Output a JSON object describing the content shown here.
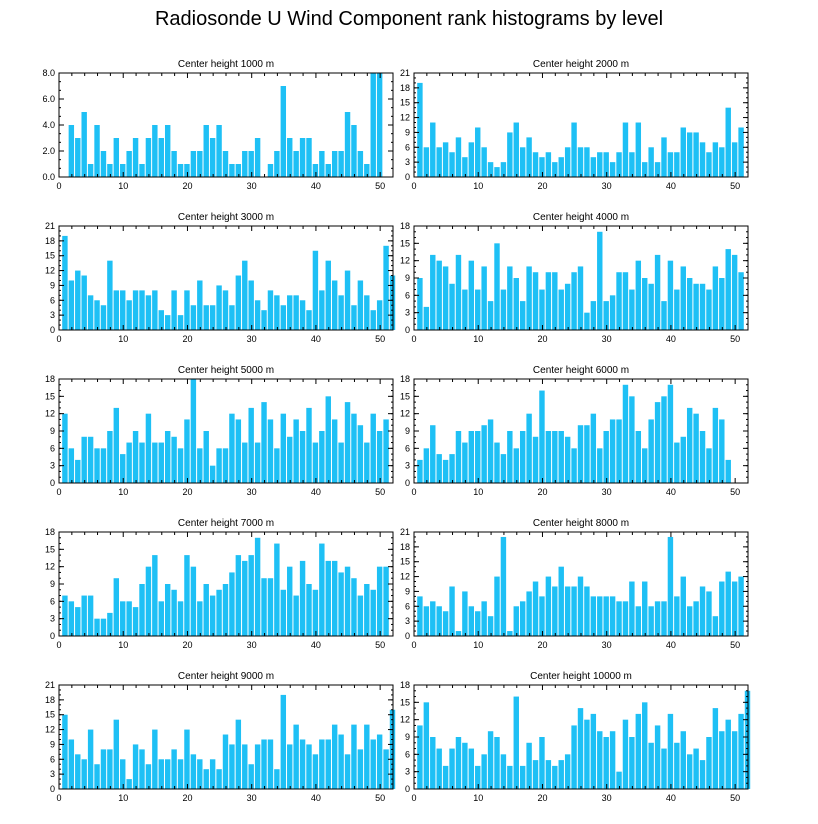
{
  "title": "Radiosonde U Wind Component rank histograms by level",
  "colors": {
    "bar": "#1ec0f5",
    "bar_stroke": "#ffffff",
    "axis": "#000000",
    "background": "#ffffff"
  },
  "chart_data": [
    {
      "type": "bar",
      "title": "Center height 1000 m",
      "ylim": [
        0,
        8
      ],
      "yticks": [
        "0.0",
        "2.0",
        "4.0",
        "6.0",
        "8.0"
      ],
      "ytick_values": [
        0,
        2,
        4,
        6,
        8
      ],
      "xticks": [
        0,
        10,
        20,
        30,
        40,
        50
      ],
      "values": [
        0,
        4,
        3,
        5,
        1,
        4,
        2,
        1,
        3,
        1,
        2,
        3,
        1,
        3,
        4,
        3,
        4,
        2,
        1,
        1,
        2,
        2,
        4,
        3,
        4,
        2,
        1,
        1,
        2,
        2,
        3,
        0,
        1,
        2,
        7,
        3,
        2,
        3,
        3,
        1,
        2,
        1,
        2,
        2,
        5,
        4,
        2,
        1,
        8,
        8
      ]
    },
    {
      "type": "bar",
      "title": "Center height 2000 m",
      "ylim": [
        0,
        21
      ],
      "yticks": [
        "0",
        "3",
        "6",
        "9",
        "12",
        "15",
        "18",
        "21"
      ],
      "ytick_values": [
        0,
        3,
        6,
        9,
        12,
        15,
        18,
        21
      ],
      "xticks": [
        0,
        10,
        20,
        30,
        40,
        50
      ],
      "values": [
        19,
        6,
        11,
        6,
        7,
        5,
        8,
        4,
        7,
        10,
        6,
        3,
        2,
        3,
        9,
        11,
        6,
        8,
        5,
        4,
        5,
        3,
        4,
        6,
        11,
        6,
        6,
        4,
        5,
        5,
        3,
        5,
        11,
        5,
        11,
        3,
        6,
        3,
        8,
        5,
        5,
        10,
        9,
        9,
        7,
        5,
        7,
        6,
        14,
        7,
        10
      ]
    },
    {
      "type": "bar",
      "title": "Center height 3000 m",
      "ylim": [
        0,
        21
      ],
      "yticks": [
        "0",
        "3",
        "6",
        "9",
        "12",
        "15",
        "18",
        "21"
      ],
      "ytick_values": [
        0,
        3,
        6,
        9,
        12,
        15,
        18,
        21
      ],
      "xticks": [
        0,
        10,
        20,
        30,
        40,
        50
      ],
      "values": [
        19,
        10,
        12,
        11,
        7,
        6,
        5,
        14,
        8,
        8,
        6,
        8,
        8,
        7,
        8,
        4,
        3,
        8,
        3,
        8,
        5,
        10,
        5,
        5,
        9,
        8,
        5,
        11,
        14,
        10,
        6,
        4,
        8,
        7,
        5,
        7,
        7,
        6,
        4,
        16,
        8,
        14,
        10,
        7,
        12,
        5,
        10,
        7,
        4,
        6,
        17,
        11
      ]
    },
    {
      "type": "bar",
      "title": "Center height 4000 m",
      "ylim": [
        0,
        18
      ],
      "yticks": [
        "0",
        "3",
        "6",
        "9",
        "12",
        "15",
        "18"
      ],
      "ytick_values": [
        0,
        3,
        6,
        9,
        12,
        15,
        18
      ],
      "xticks": [
        0,
        10,
        20,
        30,
        40,
        50
      ],
      "values": [
        9,
        4,
        13,
        12,
        11,
        8,
        13,
        7,
        12,
        7,
        11,
        5,
        15,
        7,
        11,
        9,
        5,
        11,
        10,
        7,
        10,
        10,
        7,
        8,
        10,
        11,
        3,
        5,
        17,
        5,
        6,
        10,
        10,
        7,
        12,
        9,
        8,
        13,
        5,
        12,
        7,
        11,
        9,
        8,
        8,
        7,
        11,
        9,
        14,
        13,
        10
      ]
    },
    {
      "type": "bar",
      "title": "Center height 5000 m",
      "ylim": [
        0,
        18
      ],
      "yticks": [
        "0",
        "3",
        "6",
        "9",
        "12",
        "15",
        "18"
      ],
      "ytick_values": [
        0,
        3,
        6,
        9,
        12,
        15,
        18
      ],
      "xticks": [
        0,
        10,
        20,
        30,
        40,
        50
      ],
      "values": [
        12,
        6,
        4,
        8,
        8,
        6,
        6,
        9,
        13,
        5,
        7,
        9,
        7,
        12,
        7,
        7,
        9,
        8,
        6,
        11,
        18,
        6,
        9,
        3,
        6,
        6,
        12,
        11,
        7,
        13,
        7,
        14,
        11,
        6,
        12,
        8,
        11,
        9,
        13,
        7,
        9,
        15,
        11,
        7,
        14,
        12,
        10,
        7,
        12,
        9,
        11
      ]
    },
    {
      "type": "bar",
      "title": "Center height 6000 m",
      "ylim": [
        0,
        18
      ],
      "yticks": [
        "0",
        "3",
        "6",
        "9",
        "12",
        "15",
        "18"
      ],
      "ytick_values": [
        0,
        3,
        6,
        9,
        12,
        15,
        18
      ],
      "xticks": [
        0,
        10,
        20,
        30,
        40,
        50
      ],
      "values": [
        4,
        6,
        10,
        5,
        4,
        5,
        9,
        7,
        9,
        9,
        10,
        11,
        7,
        5,
        9,
        6,
        9,
        12,
        8,
        16,
        9,
        9,
        9,
        8,
        6,
        10,
        10,
        12,
        6,
        9,
        11,
        11,
        17,
        15,
        9,
        6,
        11,
        14,
        15,
        17,
        7,
        8,
        13,
        12,
        9,
        6,
        13,
        11,
        4
      ]
    },
    {
      "type": "bar",
      "title": "Center height 7000 m",
      "ylim": [
        0,
        18
      ],
      "yticks": [
        "0",
        "3",
        "6",
        "9",
        "12",
        "15",
        "18"
      ],
      "ytick_values": [
        0,
        3,
        6,
        9,
        12,
        15,
        18
      ],
      "xticks": [
        0,
        10,
        20,
        30,
        40,
        50
      ],
      "values": [
        7,
        6,
        5,
        7,
        7,
        3,
        3,
        4,
        10,
        6,
        6,
        5,
        9,
        12,
        14,
        6,
        9,
        8,
        6,
        14,
        12,
        6,
        9,
        7,
        8,
        9,
        11,
        14,
        13,
        14,
        17,
        10,
        10,
        16,
        8,
        12,
        7,
        13,
        9,
        8,
        16,
        13,
        13,
        11,
        12,
        10,
        7,
        9,
        8,
        12,
        12
      ]
    },
    {
      "type": "bar",
      "title": "Center height 8000 m",
      "ylim": [
        0,
        21
      ],
      "yticks": [
        "0",
        "3",
        "6",
        "9",
        "12",
        "15",
        "18",
        "21"
      ],
      "ytick_values": [
        0,
        3,
        6,
        9,
        12,
        15,
        18,
        21
      ],
      "xticks": [
        0,
        10,
        20,
        30,
        40,
        50
      ],
      "values": [
        8,
        6,
        7,
        6,
        5,
        10,
        1,
        9,
        6,
        5,
        7,
        4,
        12,
        20,
        1,
        6,
        7,
        9,
        11,
        8,
        12,
        10,
        14,
        10,
        10,
        12,
        10,
        8,
        8,
        8,
        8,
        7,
        7,
        11,
        6,
        11,
        6,
        7,
        7,
        20,
        8,
        12,
        6,
        7,
        10,
        9,
        4,
        11,
        13,
        11,
        12
      ]
    },
    {
      "type": "bar",
      "title": "Center height 9000 m",
      "ylim": [
        0,
        21
      ],
      "yticks": [
        "0",
        "3",
        "6",
        "9",
        "12",
        "15",
        "18",
        "21"
      ],
      "ytick_values": [
        0,
        3,
        6,
        9,
        12,
        15,
        18,
        21
      ],
      "xticks": [
        0,
        10,
        20,
        30,
        40,
        50
      ],
      "values": [
        15,
        10,
        7,
        6,
        12,
        5,
        8,
        8,
        14,
        6,
        2,
        9,
        8,
        5,
        12,
        6,
        6,
        8,
        6,
        12,
        7,
        6,
        4,
        6,
        4,
        11,
        9,
        14,
        9,
        5,
        9,
        10,
        10,
        4,
        19,
        9,
        13,
        10,
        9,
        7,
        10,
        10,
        13,
        11,
        7,
        13,
        8,
        13,
        10,
        11,
        8,
        16
      ]
    },
    {
      "type": "bar",
      "title": "Center height 10000 m",
      "ylim": [
        0,
        18
      ],
      "yticks": [
        "0",
        "3",
        "6",
        "9",
        "12",
        "15",
        "18"
      ],
      "ytick_values": [
        0,
        3,
        6,
        9,
        12,
        15,
        18
      ],
      "xticks": [
        0,
        10,
        20,
        30,
        40,
        50
      ],
      "values": [
        11,
        15,
        9,
        7,
        4,
        7,
        9,
        8,
        7,
        4,
        6,
        10,
        9,
        6,
        4,
        16,
        4,
        8,
        5,
        9,
        5,
        4,
        5,
        6,
        11,
        14,
        12,
        13,
        10,
        9,
        10,
        3,
        12,
        9,
        13,
        15,
        8,
        11,
        7,
        13,
        8,
        10,
        6,
        7,
        5,
        9,
        14,
        10,
        12,
        10,
        13,
        17
      ]
    }
  ]
}
